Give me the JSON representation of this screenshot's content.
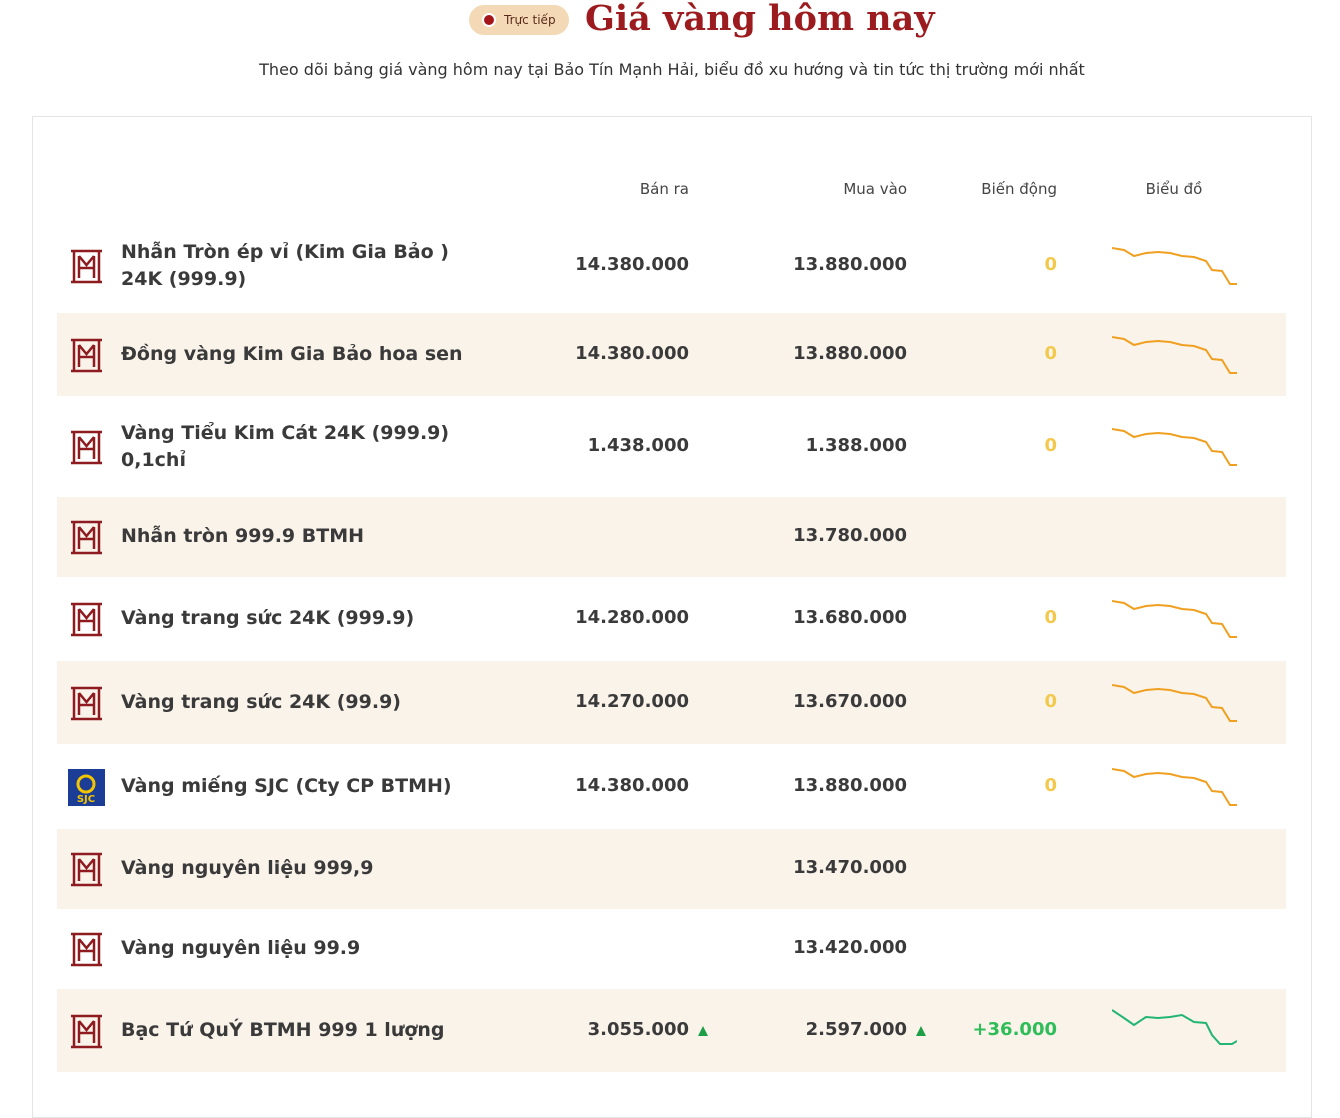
{
  "header": {
    "badge": "Trực tiếp",
    "title": "Giá vàng hôm nay",
    "subtitle": "Theo dõi bảng giá vàng hôm nay tại Bảo Tín Mạnh Hải, biểu đồ xu hướng và tin tức thị trường mới nhất"
  },
  "table": {
    "columns": [
      "Bán ra",
      "Mua vào",
      "Biến động",
      "Biểu đồ"
    ],
    "rows": [
      {
        "name": "Nhẫn Tròn ép vỉ (Kim Gia Bảo ) 24K (999.9)",
        "sell": "14.380.000",
        "buy": "13.880.000",
        "change": "0"
      },
      {
        "name": "Đồng vàng Kim Gia Bảo hoa sen",
        "sell": "14.380.000",
        "buy": "13.880.000",
        "change": "0"
      },
      {
        "name": "Vàng Tiểu Kim Cát 24K (999.9) 0,1chỉ",
        "sell": "1.438.000",
        "buy": "1.388.000",
        "change": "0"
      },
      {
        "name": "Nhẫn tròn 999.9 BTMH",
        "buy": "13.780.000"
      },
      {
        "name": "Vàng trang sức 24K (999.9)",
        "sell": "14.280.000",
        "buy": "13.680.000",
        "change": "0"
      },
      {
        "name": "Vàng trang sức 24K (99.9)",
        "sell": "14.270.000",
        "buy": "13.670.000",
        "change": "0"
      },
      {
        "name": "Vàng miếng SJC (Cty CP BTMH)",
        "sell": "14.380.000",
        "buy": "13.880.000",
        "change": "0",
        "logo": "SJC"
      },
      {
        "name": "Vàng nguyên liệu 999,9",
        "buy": "13.470.000"
      },
      {
        "name": "Vàng nguyên liệu 99.9",
        "buy": "13.420.000"
      },
      {
        "name": "Bạc Tứ QuÝ BTMH 999 1 lượng",
        "sell": "3.055.000",
        "buy": "2.597.000",
        "change": "+36.000"
      }
    ]
  }
}
